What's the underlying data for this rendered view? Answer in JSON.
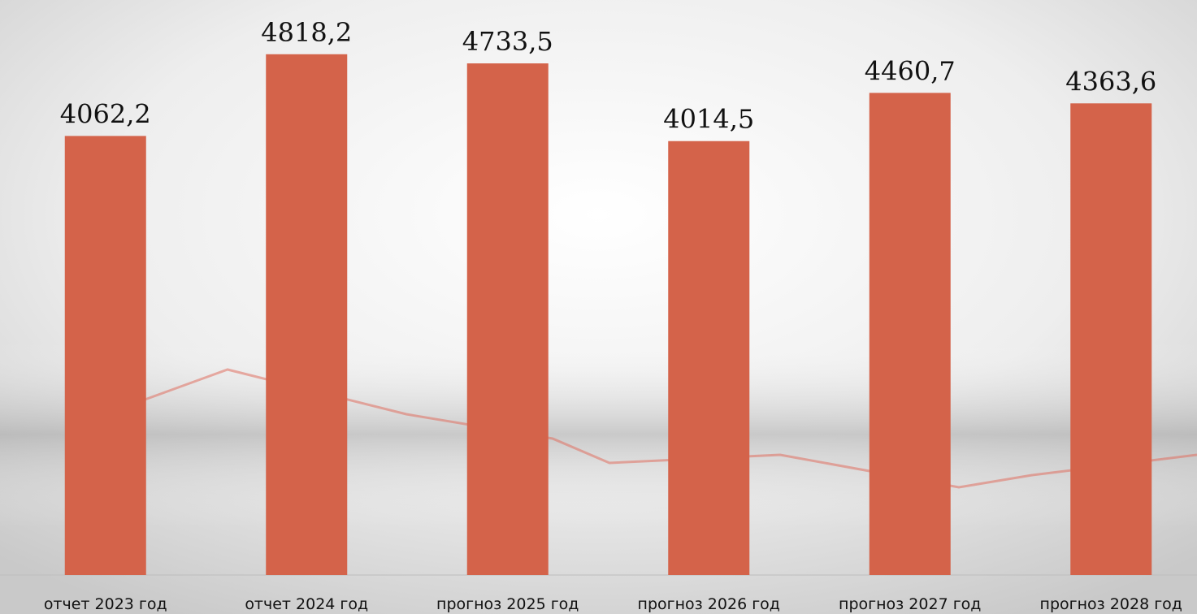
{
  "chart_data": {
    "type": "bar",
    "categories": [
      "отчет 2023 год",
      "отчет 2024 год",
      "прогноз 2025 год",
      "прогноз 2026 год",
      "прогноз 2027 год",
      "прогноз 2028 год"
    ],
    "values": [
      4062.2,
      4818.2,
      4733.5,
      4014.5,
      4460.7,
      4363.6
    ],
    "value_labels": [
      "4062,2",
      "4818,2",
      "4733,5",
      "4014,5",
      "4460,7",
      "4363,6"
    ],
    "color": "#d4634a",
    "ylim": [
      0,
      5320
    ]
  }
}
